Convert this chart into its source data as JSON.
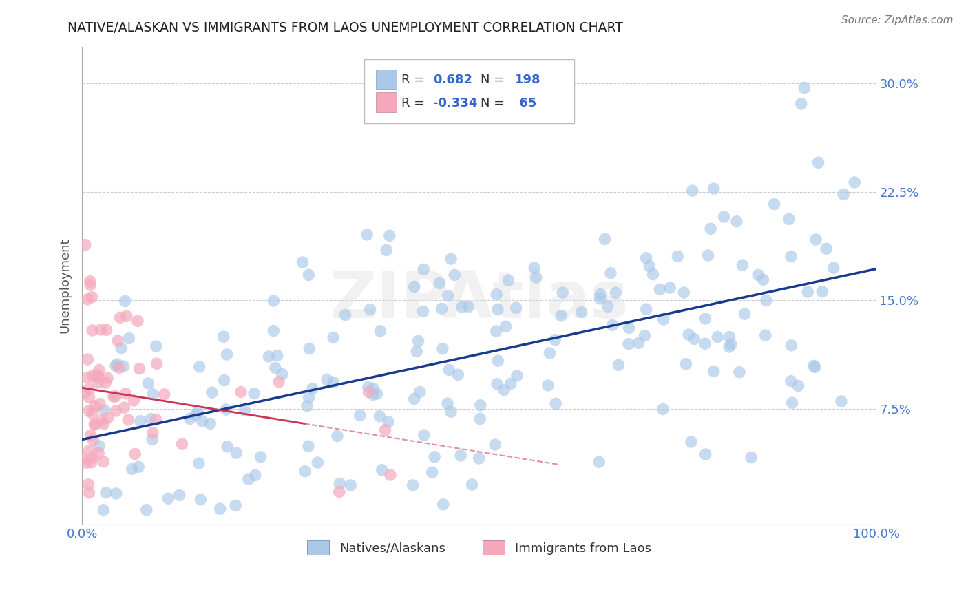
{
  "title": "NATIVE/ALASKAN VS IMMIGRANTS FROM LAOS UNEMPLOYMENT CORRELATION CHART",
  "source": "Source: ZipAtlas.com",
  "ylabel": "Unemployment",
  "xlim": [
    0,
    1.0
  ],
  "ylim": [
    0,
    0.325
  ],
  "ytick_vals": [
    0.075,
    0.15,
    0.225,
    0.3
  ],
  "ytick_labels": [
    "7.5%",
    "15.0%",
    "22.5%",
    "30.0%"
  ],
  "xtick_vals": [
    0.0,
    0.25,
    0.5,
    0.75,
    1.0
  ],
  "xtick_labels": [
    "0.0%",
    "",
    "",
    "",
    "100.0%"
  ],
  "blue_R": 0.682,
  "blue_N": 198,
  "pink_R": -0.334,
  "pink_N": 65,
  "blue_color": "#aac8e8",
  "pink_color": "#f5a8bc",
  "blue_line_color": "#1a3a8f",
  "pink_line_color": "#cc3355",
  "background_color": "#ffffff",
  "legend_blue_label": "Natives/Alaskans",
  "legend_pink_label": "Immigrants from Laos",
  "R_color": "#3366cc",
  "N_color": "#3366cc",
  "axis_tick_color": "#4477cc",
  "title_color": "#222222",
  "source_color": "#777777",
  "grid_color": "#cccccc",
  "ylabel_color": "#555555"
}
